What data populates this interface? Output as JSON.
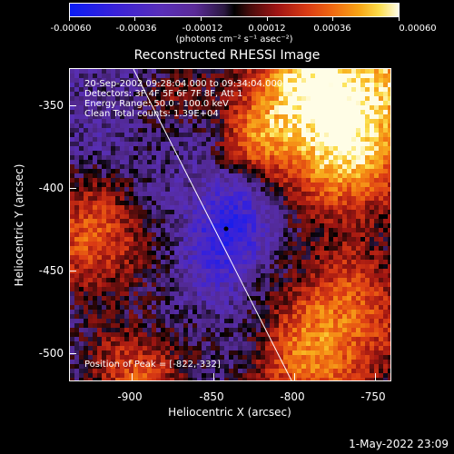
{
  "colorbar": {
    "tick_labels": [
      "-0.00060",
      "-0.00036",
      "-0.00012",
      "0.00012",
      "0.00036",
      "0.00060"
    ],
    "units_label": "(photons cm⁻² s⁻¹ asec⁻²)"
  },
  "title": "Reconstructed RHESSI Image",
  "annotations": {
    "time_range": "20-Sep-2002 09:28:04.000 to 09:34:04.000",
    "detectors": "Detectors: 3F 4F 5F 6F 7F 8F, Att 1",
    "energy_range": "Energy Range: 50.0 - 100.0 keV",
    "clean_counts": "Clean    Total counts: 1.39E+04",
    "peak_position": "Position of Peak = [-822,-332]"
  },
  "axes": {
    "xlabel": "Heliocentric X (arcsec)",
    "ylabel": "Heliocentric Y (arcsec)",
    "xticks": [
      "-900",
      "-850",
      "-800",
      "-750"
    ],
    "yticks": [
      "-350",
      "-400",
      "-450",
      "-500"
    ]
  },
  "timestamp": "1-May-2022 23:09",
  "colors": {
    "background": "#000000",
    "negative_max": "#0b1cf5",
    "zero": "#000000",
    "positive_max": "#fffde6",
    "limb_line": "#ffffff"
  }
}
